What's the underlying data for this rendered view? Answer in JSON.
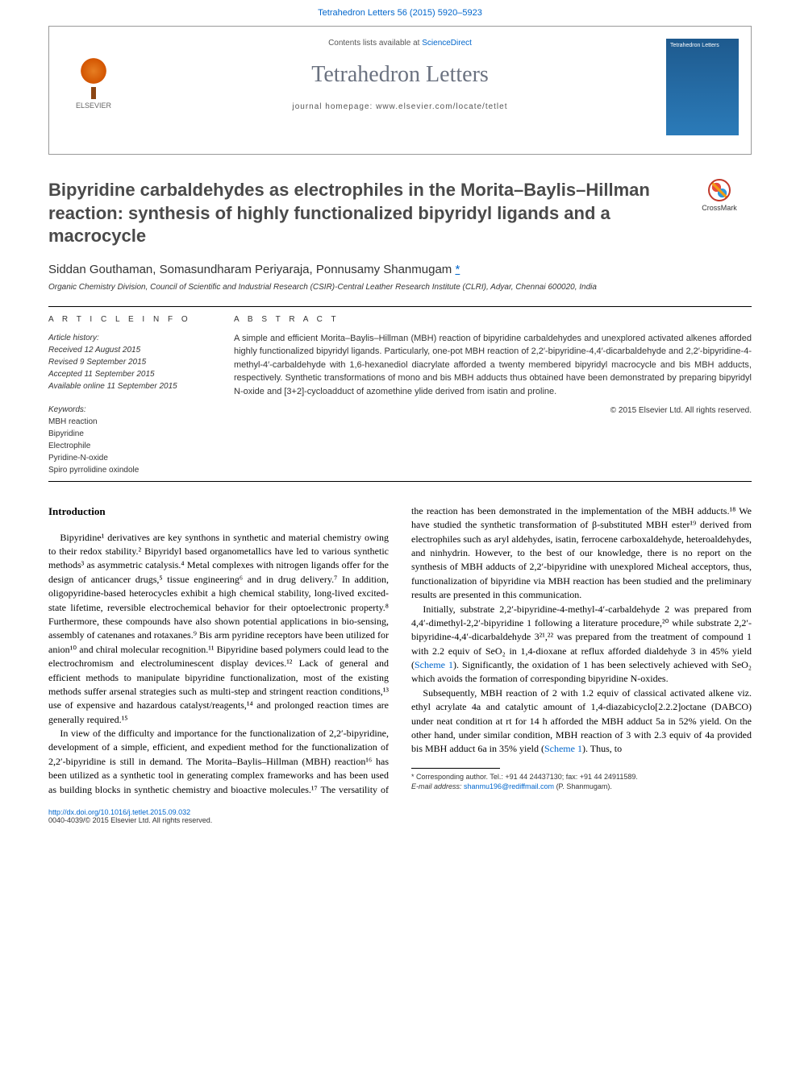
{
  "colors": {
    "link": "#0066cc",
    "text": "#000000",
    "muted": "#555555",
    "title_gray": "#4a4a4a",
    "journal_gray": "#6b7280",
    "cover_bg_top": "#1e5a8e",
    "cover_bg_bottom": "#2b7bb9",
    "crossmark_ring": "#c0392b"
  },
  "typography": {
    "body_family": "Georgia, 'Times New Roman', serif",
    "sans_family": "Arial, sans-serif",
    "title_size_pt": 16,
    "journal_name_size_pt": 21,
    "body_size_pt": 9,
    "abstract_size_pt": 8,
    "footnote_size_pt": 7
  },
  "header": {
    "citation": "Tetrahedron Letters 56 (2015) 5920–5923",
    "contents_prefix": "Contents lists available at ",
    "contents_link": "ScienceDirect",
    "journal_name": "Tetrahedron Letters",
    "homepage_label": "journal homepage: ",
    "homepage_url": "www.elsevier.com/locate/tetlet",
    "publisher_logo_text": "ELSEVIER",
    "cover_text": "Tetrahedron Letters"
  },
  "crossmark": {
    "label": "CrossMark"
  },
  "article": {
    "title": "Bipyridine carbaldehydes as electrophiles in the Morita–Baylis–Hillman reaction: synthesis of highly functionalized bipyridyl ligands and a macrocycle",
    "authors_plain": "Siddan Gouthaman, Somasundharam Periyaraja, Ponnusamy Shanmugam",
    "corr_marker": "*",
    "affiliation": "Organic Chemistry Division, Council of Scientific and Industrial Research (CSIR)-Central Leather Research Institute (CLRI), Adyar, Chennai 600020, India"
  },
  "info": {
    "label": "A R T I C L E   I N F O",
    "history_head": "Article history:",
    "received": "Received 12 August 2015",
    "revised": "Revised 9 September 2015",
    "accepted": "Accepted 11 September 2015",
    "online": "Available online 11 September 2015",
    "keywords_head": "Keywords:",
    "keywords": [
      "MBH reaction",
      "Bipyridine",
      "Electrophile",
      "Pyridine-N-oxide",
      "Spiro pyrrolidine oxindole"
    ]
  },
  "abstract": {
    "label": "A B S T R A C T",
    "text": "A simple and efficient Morita–Baylis–Hillman (MBH) reaction of bipyridine carbaldehydes and unexplored activated alkenes afforded highly functionalized bipyridyl ligands. Particularly, one-pot MBH reaction of 2,2′-bipyridine-4,4′-dicarbaldehyde and 2,2′-bipyridine-4-methyl-4′-carbaldehyde with 1,6-hexanediol diacrylate afforded a twenty membered bipyridyl macrocycle and bis MBH adducts, respectively. Synthetic transformations of mono and bis MBH adducts thus obtained have been demonstrated by preparing bipyridyl N-oxide and [3+2]-cycloadduct of azomethine ylide derived from isatin and proline.",
    "copyright": "© 2015 Elsevier Ltd. All rights reserved."
  },
  "body": {
    "section_heading": "Introduction",
    "p1": "Bipyridine¹ derivatives are key synthons in synthetic and material chemistry owing to their redox stability.² Bipyridyl based organometallics have led to various synthetic methods³ as asymmetric catalysis.⁴ Metal complexes with nitrogen ligands offer for the design of anticancer drugs,⁵ tissue engineering⁶ and in drug delivery.⁷ In addition, oligopyridine-based heterocycles exhibit a high chemical stability, long-lived excited-state lifetime, reversible electrochemical behavior for their optoelectronic property.⁸ Furthermore, these compounds have also shown potential applications in bio-sensing, assembly of catenanes and rotaxanes.⁹ Bis arm pyridine receptors have been utilized for anion¹⁰ and chiral molecular recognition.¹¹ Bipyridine based polymers could lead to the electrochromism and electroluminescent display devices.¹² Lack of general and efficient methods to manipulate bipyridine functionalization, most of the existing methods suffer arsenal strategies such as multi-step and stringent reaction conditions,¹³ use of expensive and hazardous catalyst/reagents,¹⁴ and prolonged reaction times are generally required.¹⁵",
    "p2": "In view of the difficulty and importance for the functionalization of 2,2′-bipyridine, development of a simple, efficient, and expedient method for the functionalization of 2,2′-bipyridine is still in demand. The Morita–Baylis–Hillman (MBH) reaction¹⁶ has been utilized as a synthetic tool in generating complex frameworks and has been used as building blocks in synthetic chemistry and bioactive molecules.¹⁷ The versatility of the reaction has been demonstrated in the implementation of the MBH adducts.¹⁸ We have studied the synthetic transformation of β-substituted MBH ester¹⁹ derived from electrophiles such as aryl aldehydes, isatin, ferrocene carboxaldehyde, heteroaldehydes, and ninhydrin. However, to the best of our knowledge, there is no report on the synthesis of MBH adducts of 2,2′-bipyridine with unexplored Micheal acceptors, thus, functionalization of bipyridine via MBH reaction has been studied and the preliminary results are presented in this communication.",
    "p3_a": "Initially, substrate 2,2′-bipyridine-4-methyl-4′-carbaldehyde 2 was prepared from 4,4′-dimethyl-2,2′-bipyridine 1 following a literature procedure,²⁰ while substrate 2,2′-bipyridine-4,4′-dicarbaldehyde 3²¹,²² was prepared from the treatment of compound 1 with 2.2 equiv of SeO₂ in 1,4-dioxane at reflux afforded dialdehyde 3 in 45% yield (",
    "scheme1": "Scheme 1",
    "p3_b": "). Significantly, the oxidation of 1 has been selectively achieved with SeO₂ which avoids the formation of corresponding bipyridine N-oxides.",
    "p4_a": "Subsequently, MBH reaction of 2 with 1.2 equiv of classical activated alkene viz. ethyl acrylate 4a and catalytic amount of 1,4-diazabicyclo[2.2.2]octane (DABCO) under neat condition at rt for 14 h afforded the MBH adduct 5a in 52% yield. On the other hand, under similar condition, MBH reaction of 3 with 2.3 equiv of 4a provided bis MBH adduct 6a in 35% yield (",
    "p4_b": "). Thus, to"
  },
  "footnote": {
    "corr_line": "* Corresponding author. Tel.: +91 44 24437130; fax: +91 44 24911589.",
    "email_label": "E-mail address: ",
    "email": "shanmu196@rediffmail.com",
    "email_suffix": " (P. Shanmugam)."
  },
  "footer": {
    "doi": "http://dx.doi.org/10.1016/j.tetlet.2015.09.032",
    "issn_line": "0040-4039/© 2015 Elsevier Ltd. All rights reserved."
  }
}
